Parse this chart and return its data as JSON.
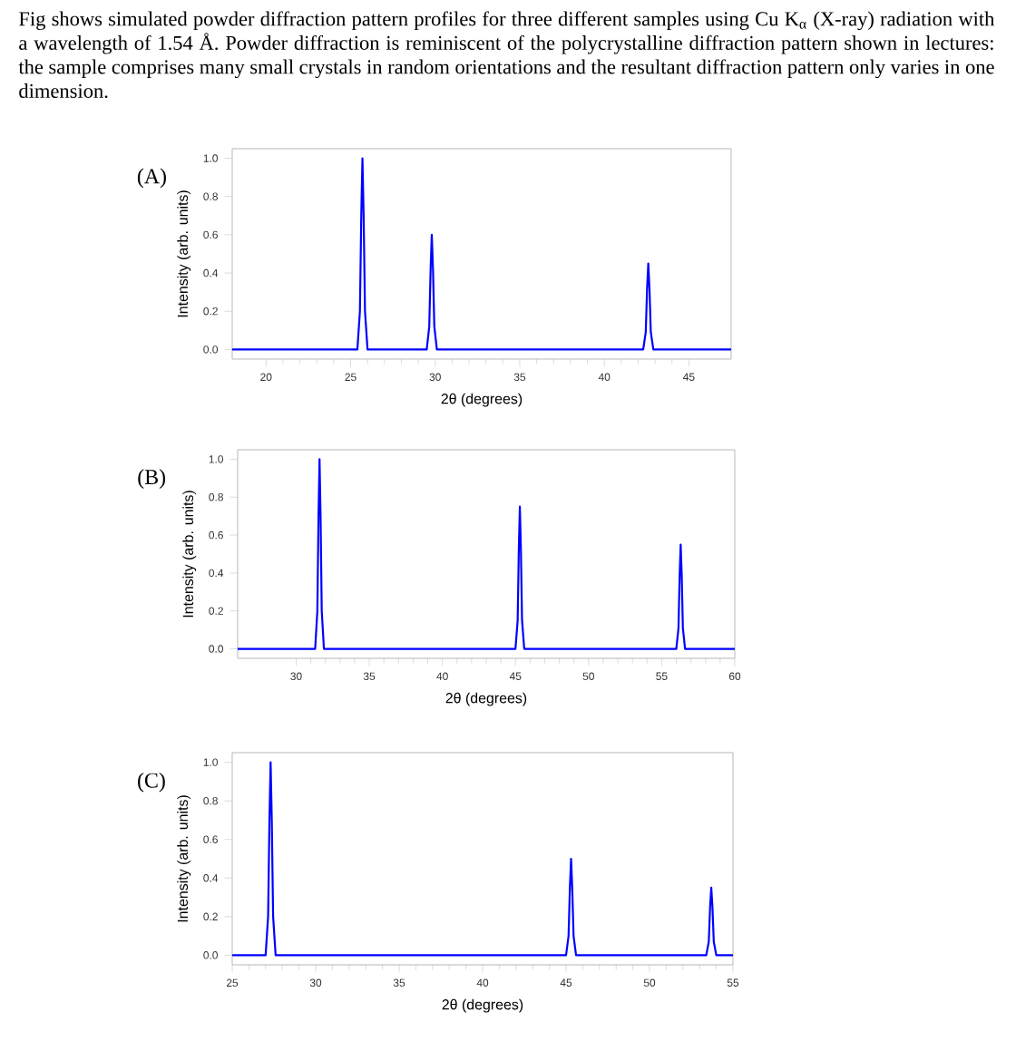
{
  "chart_data": [
    {
      "type": "line",
      "title": "(A)",
      "xlabel": "2θ (degrees)",
      "ylabel": "Intensity (arb. units)",
      "annotations": [
        "Fig shows simulated powder diffraction pattern profiles for three different samples using Cu K$_{α}$ (X-ray) radiation with a wavelength of 1.54 Å. Powder diffraction is reminiscent of the polycrystalline diffraction pattern shown in lectures: the sample comprises many small crystals in random orientations and the resultant diffraction pattern only varies in one dimension."
      ],
      "xlim": [
        18,
        47.5
      ],
      "ylim": [
        -0.05,
        1.05
      ],
      "xticks": [
        20,
        25,
        30,
        35,
        40,
        45
      ],
      "yticks": [
        {
          "value": 0,
          "label": "0.0"
        },
        {
          "value": 0.2,
          "label": "0.2"
        },
        {
          "value": 0.4,
          "label": "0.4"
        },
        {
          "value": 0.6,
          "label": "0.6"
        },
        {
          "value": 0.8,
          "label": "0.8"
        },
        {
          "value": 1.0,
          "label": "1.0"
        }
      ],
      "series": [
        {
          "color": "#0000ff",
          "x": [
            18,
            25.4,
            25.55,
            25.63,
            25.7,
            25.77,
            25.85,
            26.0,
            29.5,
            29.65,
            29.73,
            29.8,
            29.87,
            29.95,
            30.1,
            42.3,
            42.45,
            42.53,
            42.6,
            42.67,
            42.75,
            42.9,
            47.5
          ],
          "values": [
            0,
            0,
            0.2,
            0.7,
            1.0,
            0.7,
            0.2,
            0,
            0,
            0.12,
            0.42,
            0.6,
            0.42,
            0.12,
            0,
            0,
            0.09,
            0.32,
            0.45,
            0.32,
            0.09,
            0,
            0
          ]
        }
      ]
    },
    {
      "type": "line",
      "title": "(B)",
      "xlabel": "2θ (degrees)",
      "ylabel": "Intensity (arb. units)",
      "xlim": [
        26,
        60
      ],
      "ylim": [
        -0.05,
        1.05
      ],
      "xticks": [
        30,
        35,
        40,
        45,
        50,
        55,
        60
      ],
      "yticks": [
        {
          "value": 0,
          "label": "0.0"
        },
        {
          "value": 0.2,
          "label": "0.2"
        },
        {
          "value": 0.4,
          "label": "0.4"
        },
        {
          "value": 0.6,
          "label": "0.6"
        },
        {
          "value": 0.8,
          "label": "0.8"
        },
        {
          "value": 1.0,
          "label": "1.0"
        }
      ],
      "series": [
        {
          "color": "#0000ff",
          "x": [
            26,
            31.3,
            31.45,
            31.53,
            31.6,
            31.67,
            31.75,
            31.9,
            45.0,
            45.15,
            45.23,
            45.3,
            45.37,
            45.45,
            45.6,
            56.0,
            56.15,
            56.23,
            56.3,
            56.37,
            56.45,
            56.6,
            60
          ],
          "values": [
            0,
            0,
            0.2,
            0.7,
            1.0,
            0.7,
            0.2,
            0,
            0,
            0.15,
            0.53,
            0.75,
            0.53,
            0.15,
            0,
            0,
            0.11,
            0.39,
            0.55,
            0.39,
            0.11,
            0,
            0
          ]
        }
      ]
    },
    {
      "type": "line",
      "title": "(C)",
      "xlabel": "2θ (degrees)",
      "ylabel": "Intensity (arb. units)",
      "xlim": [
        25,
        55
      ],
      "ylim": [
        -0.05,
        1.05
      ],
      "xticks": [
        25,
        30,
        35,
        40,
        45,
        50,
        55
      ],
      "yticks": [
        {
          "value": 0,
          "label": "0.0"
        },
        {
          "value": 0.2,
          "label": "0.2"
        },
        {
          "value": 0.4,
          "label": "0.4"
        },
        {
          "value": 0.6,
          "label": "0.6"
        },
        {
          "value": 0.8,
          "label": "0.8"
        },
        {
          "value": 1.0,
          "label": "1.0"
        }
      ],
      "series": [
        {
          "color": "#0000ff",
          "x": [
            25,
            27.0,
            27.15,
            27.23,
            27.3,
            27.37,
            27.45,
            27.6,
            45.0,
            45.15,
            45.23,
            45.3,
            45.37,
            45.45,
            45.6,
            53.4,
            53.55,
            53.63,
            53.7,
            53.77,
            53.85,
            54.0,
            55
          ],
          "values": [
            0,
            0,
            0.2,
            0.7,
            1.0,
            0.7,
            0.2,
            0,
            0,
            0.1,
            0.35,
            0.5,
            0.35,
            0.1,
            0,
            0,
            0.07,
            0.25,
            0.35,
            0.25,
            0.07,
            0,
            0
          ]
        }
      ]
    }
  ]
}
